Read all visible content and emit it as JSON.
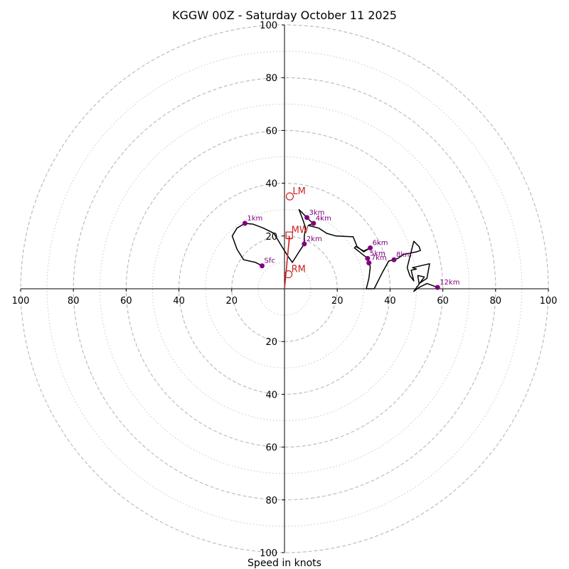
{
  "chart_data": {
    "type": "hodograph",
    "title": "KGGW 00Z - Saturday October 11 2025",
    "xlabel": "Speed in knots",
    "max_speed": 100,
    "major_rings": [
      20,
      40,
      60,
      80,
      100
    ],
    "minor_rings": [
      10,
      30,
      50,
      70,
      90
    ],
    "x_tick_labels": [
      "100",
      "80",
      "60",
      "40",
      "20",
      "20",
      "40",
      "60",
      "80",
      "100"
    ],
    "x_tick_values": [
      -100,
      -80,
      -60,
      -40,
      -20,
      20,
      40,
      60,
      80,
      100
    ],
    "y_tick_labels": [
      "100",
      "80",
      "60",
      "40",
      "20",
      "20",
      "40",
      "60",
      "80",
      "100"
    ],
    "y_tick_values": [
      100,
      80,
      60,
      40,
      20,
      -20,
      -40,
      -60,
      -80,
      -100
    ],
    "trace": [
      [
        -8.5,
        8.7
      ],
      [
        -11,
        10
      ],
      [
        -15.5,
        11
      ],
      [
        -18,
        15
      ],
      [
        -19.8,
        20
      ],
      [
        -18,
        23
      ],
      [
        -15,
        24.8
      ],
      [
        -12,
        24.5
      ],
      [
        -8,
        23
      ],
      [
        -4,
        21
      ],
      [
        -1,
        16
      ],
      [
        1.5,
        12
      ],
      [
        3,
        10
      ],
      [
        5.5,
        14
      ],
      [
        7.5,
        17
      ],
      [
        7.5,
        20
      ],
      [
        8,
        23
      ],
      [
        7,
        26
      ],
      [
        5.5,
        30
      ],
      [
        6.5,
        29
      ],
      [
        8.5,
        27
      ],
      [
        10,
        25.5
      ],
      [
        11,
        24.8
      ],
      [
        9,
        24
      ],
      [
        13,
        23
      ],
      [
        16,
        21
      ],
      [
        19.5,
        20
      ],
      [
        26,
        19.7
      ],
      [
        27.5,
        16
      ],
      [
        30,
        14
      ],
      [
        32.5,
        15.5
      ],
      [
        30,
        14.3
      ],
      [
        27,
        16
      ],
      [
        26.5,
        15.5
      ],
      [
        29,
        13.5
      ],
      [
        31.5,
        11.5
      ],
      [
        32,
        9.8
      ],
      [
        32.5,
        8.3
      ],
      [
        32,
        4
      ],
      [
        31,
        0
      ],
      [
        34,
        0
      ],
      [
        37,
        6
      ],
      [
        39.5,
        10.5
      ],
      [
        41.5,
        11
      ],
      [
        43,
        11.5
      ],
      [
        45,
        13
      ],
      [
        50,
        14
      ],
      [
        51.5,
        14.5
      ],
      [
        51,
        16
      ],
      [
        49,
        18
      ],
      [
        47.5,
        12
      ],
      [
        46.5,
        8
      ],
      [
        47.5,
        5
      ],
      [
        49,
        3
      ],
      [
        48,
        7
      ],
      [
        50,
        7.5
      ],
      [
        48.5,
        8
      ],
      [
        55,
        9.5
      ],
      [
        54,
        4
      ],
      [
        51,
        2
      ],
      [
        50.5,
        5
      ],
      [
        53,
        4.5
      ],
      [
        49,
        -1
      ],
      [
        51,
        0.5
      ],
      [
        54,
        2
      ],
      [
        58,
        0.5
      ]
    ],
    "height_markers": [
      {
        "label": "Sfc",
        "u": -8.5,
        "v": 8.7
      },
      {
        "label": "1km",
        "u": -15,
        "v": 24.8
      },
      {
        "label": "2km",
        "u": 7.5,
        "v": 17
      },
      {
        "label": "3km",
        "u": 8.5,
        "v": 27
      },
      {
        "label": "4km",
        "u": 11,
        "v": 24.8
      },
      {
        "label": "5km",
        "u": 31.5,
        "v": 11.5
      },
      {
        "label": "6km",
        "u": 32.5,
        "v": 15.5
      },
      {
        "label": "7km",
        "u": 32,
        "v": 9.8
      },
      {
        "label": "8km",
        "u": 41.5,
        "v": 11
      },
      {
        "label": "12km",
        "u": 58,
        "v": 0.5
      }
    ],
    "storm_motion": {
      "LM": {
        "label": "LM",
        "u": 2,
        "v": 35
      },
      "RM": {
        "label": "RM",
        "u": 1.5,
        "v": 5.5
      },
      "MW": {
        "label": "MW",
        "u": 1.8,
        "v": 20.3
      }
    },
    "shear_vector": {
      "from": [
        0,
        0
      ],
      "to": [
        1.8,
        19
      ]
    },
    "colors": {
      "trace": "#000000",
      "marker": "#800080",
      "storm": "#cc2222",
      "ring_major": "#b8b8b8",
      "ring_minor": "#c8c8c8",
      "axis": "#000000"
    }
  }
}
